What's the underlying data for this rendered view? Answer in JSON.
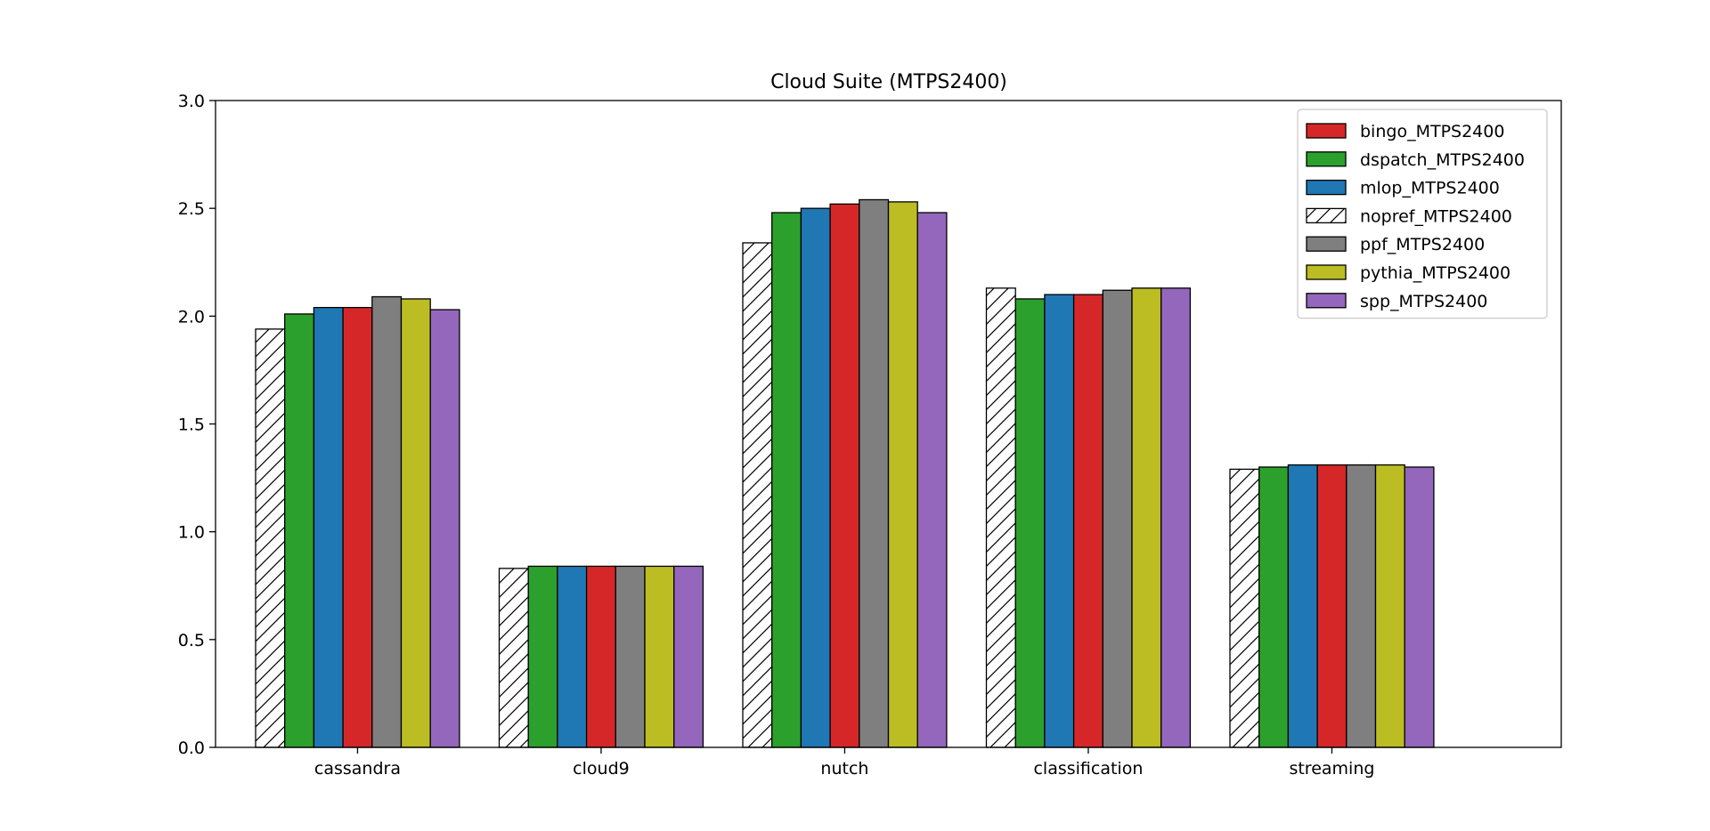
{
  "chart_data": {
    "type": "bar",
    "title": "Cloud Suite (MTPS2400)",
    "xlabel": "",
    "ylabel": "",
    "ylim": [
      0,
      3.0
    ],
    "yticks": [
      "0.0",
      "0.5",
      "1.0",
      "1.5",
      "2.0",
      "2.5",
      "3.0"
    ],
    "categories": [
      "cassandra",
      "cloud9",
      "nutch",
      "classification",
      "streaming"
    ],
    "grid": false,
    "legend_position": "top-right",
    "legend": [
      "bingo_MTPS2400",
      "dspatch_MTPS2400",
      "mlop_MTPS2400",
      "nopref_MTPS2400",
      "ppf_MTPS2400",
      "pythia_MTPS2400",
      "spp_MTPS2400"
    ],
    "series": [
      {
        "name": "nopref_MTPS2400",
        "color": "#ffffff",
        "hatch": true,
        "values": [
          1.94,
          0.83,
          2.34,
          2.13,
          1.29
        ]
      },
      {
        "name": "dspatch_MTPS2400",
        "color": "#2ca02c",
        "values": [
          2.01,
          0.84,
          2.48,
          2.08,
          1.3
        ]
      },
      {
        "name": "mlop_MTPS2400",
        "color": "#1f77b4",
        "values": [
          2.04,
          0.84,
          2.5,
          2.1,
          1.31
        ]
      },
      {
        "name": "bingo_MTPS2400",
        "color": "#d62728",
        "values": [
          2.04,
          0.84,
          2.52,
          2.1,
          1.31
        ]
      },
      {
        "name": "ppf_MTPS2400",
        "color": "#7f7f7f",
        "values": [
          2.09,
          0.84,
          2.54,
          2.12,
          1.31
        ]
      },
      {
        "name": "pythia_MTPS2400",
        "color": "#bcbd22",
        "values": [
          2.08,
          0.84,
          2.53,
          2.13,
          1.31
        ]
      },
      {
        "name": "spp_MTPS2400",
        "color": "#9467bd",
        "values": [
          2.03,
          0.84,
          2.48,
          2.13,
          1.3
        ]
      }
    ]
  }
}
